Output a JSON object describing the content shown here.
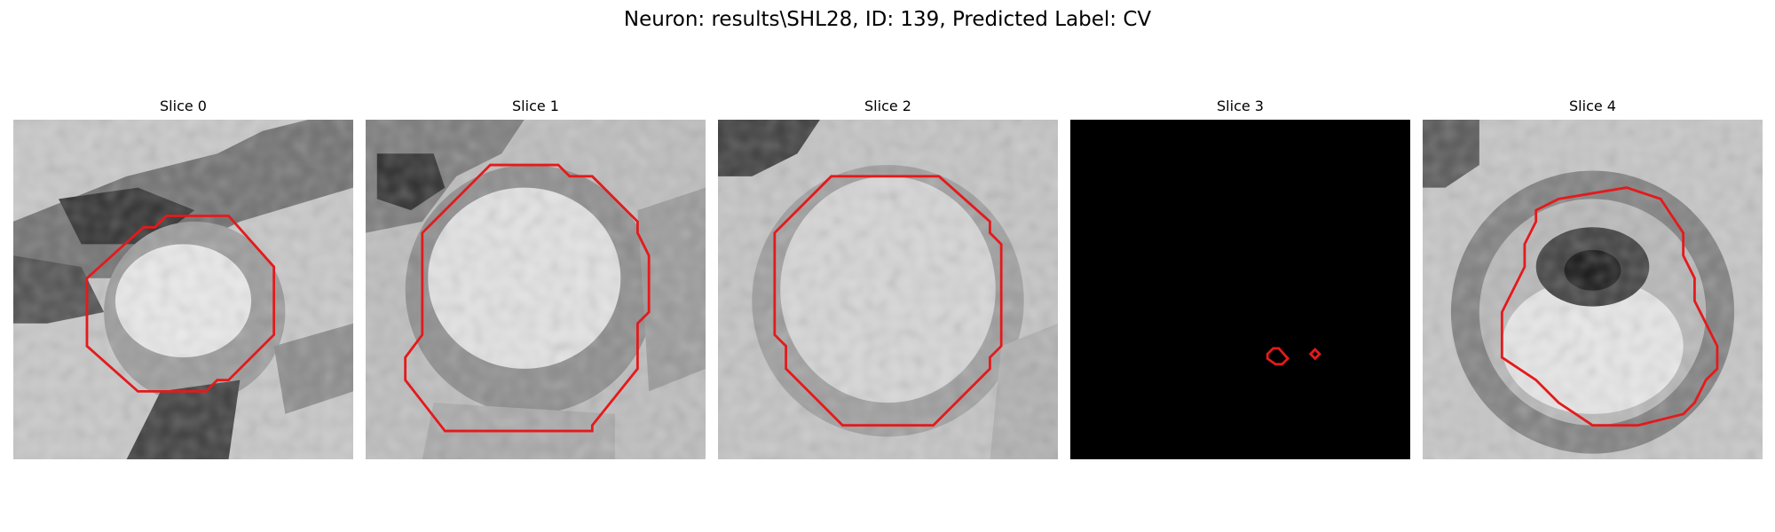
{
  "title": "Neuron: results\\SHL28, ID: 139, Predicted Label: CV",
  "contour_color": "#e41a1c",
  "slices": [
    {
      "label": "Slice 0"
    },
    {
      "label": "Slice 1"
    },
    {
      "label": "Slice 2"
    },
    {
      "label": "Slice 3"
    },
    {
      "label": "Slice 4"
    }
  ]
}
